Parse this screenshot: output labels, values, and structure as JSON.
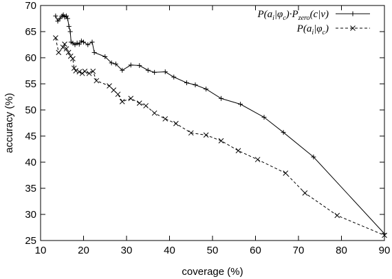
{
  "chart_data": {
    "type": "line",
    "xlabel": "coverage (%)",
    "ylabel": "accuracy (%)",
    "xlim": [
      10,
      90
    ],
    "ylim": [
      25,
      70
    ],
    "x_ticks": [
      "10",
      "20",
      "30",
      "40",
      "50",
      "60",
      "70",
      "80",
      "90"
    ],
    "y_ticks": [
      "25",
      "30",
      "35",
      "40",
      "45",
      "50",
      "55",
      "60",
      "65",
      "70"
    ],
    "grid": false,
    "legend_position": "top-right",
    "series": [
      {
        "name": "P(a_i|φ_c)·P_zero(c|v)",
        "legend": {
          "base": "P(a",
          "sub1": "i",
          "mid1": "|φ",
          "sub2": "c",
          "mid2": ")·P",
          "sub3": "zero",
          "mid3": "(c|v)"
        },
        "marker": "plus",
        "line_style": "solid",
        "points": [
          [
            13.5,
            68.0
          ],
          [
            14.0,
            67.0
          ],
          [
            14.5,
            67.5
          ],
          [
            15.0,
            68.0
          ],
          [
            15.3,
            68.2
          ],
          [
            15.6,
            67.8
          ],
          [
            16.0,
            68.0
          ],
          [
            16.3,
            67.5
          ],
          [
            16.6,
            66.0
          ],
          [
            16.9,
            65.0
          ],
          [
            17.1,
            63.0
          ],
          [
            17.5,
            62.8
          ],
          [
            18.0,
            62.5
          ],
          [
            18.5,
            62.8
          ],
          [
            19.0,
            62.6
          ],
          [
            19.5,
            63.2
          ],
          [
            20.0,
            63.0
          ],
          [
            21.0,
            62.5
          ],
          [
            22.0,
            63.0
          ],
          [
            22.5,
            61.0
          ],
          [
            25.0,
            60.2
          ],
          [
            26.5,
            59.0
          ],
          [
            27.5,
            58.8
          ],
          [
            29.0,
            57.6
          ],
          [
            31.0,
            58.6
          ],
          [
            33.0,
            58.5
          ],
          [
            35.0,
            57.6
          ],
          [
            36.5,
            57.2
          ],
          [
            39.0,
            57.3
          ],
          [
            41.0,
            56.3
          ],
          [
            44.0,
            55.2
          ],
          [
            46.0,
            54.8
          ],
          [
            48.5,
            54.0
          ],
          [
            52.0,
            52.2
          ],
          [
            56.5,
            51.1
          ],
          [
            62.0,
            48.6
          ],
          [
            66.5,
            45.7
          ],
          [
            73.5,
            41.0
          ],
          [
            90.0,
            26.3
          ]
        ]
      },
      {
        "name": "P(a_i|φ_c)",
        "legend": {
          "base": "P(a",
          "sub1": "i",
          "mid1": "|φ",
          "sub2": "c",
          "mid2": ")"
        },
        "marker": "cross",
        "line_style": "dashed",
        "points": [
          [
            13.5,
            63.8
          ],
          [
            14.2,
            61.0
          ],
          [
            15.2,
            62.0
          ],
          [
            15.6,
            62.6
          ],
          [
            16.0,
            61.7
          ],
          [
            16.5,
            61.0
          ],
          [
            17.0,
            60.3
          ],
          [
            17.5,
            59.8
          ],
          [
            17.8,
            58.0
          ],
          [
            18.2,
            57.5
          ],
          [
            19.0,
            57.3
          ],
          [
            19.7,
            57.0
          ],
          [
            20.3,
            57.4
          ],
          [
            21.3,
            57.0
          ],
          [
            22.2,
            57.4
          ],
          [
            23.0,
            55.6
          ],
          [
            26.0,
            54.6
          ],
          [
            27.0,
            53.8
          ],
          [
            28.0,
            53.0
          ],
          [
            29.0,
            51.6
          ],
          [
            31.0,
            52.2
          ],
          [
            33.0,
            51.3
          ],
          [
            34.5,
            50.8
          ],
          [
            36.5,
            49.4
          ],
          [
            39.0,
            48.3
          ],
          [
            41.5,
            47.4
          ],
          [
            45.0,
            45.6
          ],
          [
            48.5,
            45.2
          ],
          [
            52.0,
            44.1
          ],
          [
            56.0,
            42.2
          ],
          [
            60.5,
            40.5
          ],
          [
            67.0,
            37.9
          ],
          [
            71.5,
            34.1
          ],
          [
            79.0,
            29.8
          ],
          [
            90.0,
            26.0
          ]
        ]
      }
    ]
  }
}
